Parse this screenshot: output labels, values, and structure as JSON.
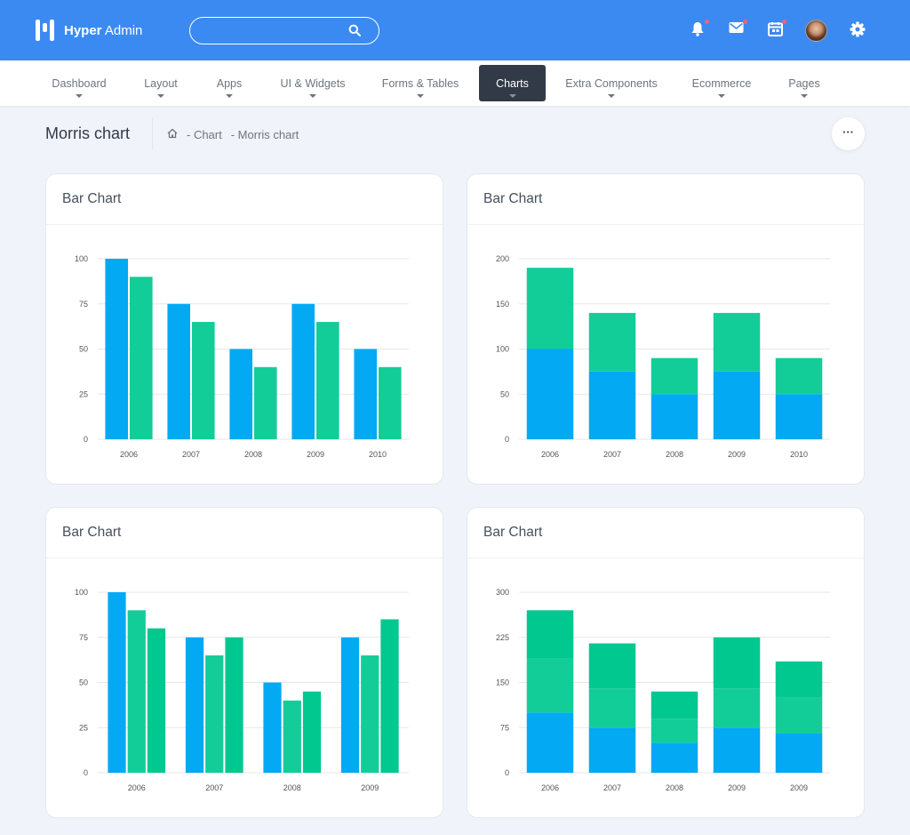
{
  "brand": {
    "name_bold": "Hyper",
    "name_rest": " Admin"
  },
  "search": {
    "placeholder": "",
    "value": ""
  },
  "topbar_icons": [
    "bell-icon",
    "mail-icon",
    "calendar-icon",
    "avatar",
    "gear-icon"
  ],
  "menu": [
    {
      "label": "Dashboard",
      "active": false
    },
    {
      "label": "Layout",
      "active": false
    },
    {
      "label": "Apps",
      "active": false
    },
    {
      "label": "UI & Widgets",
      "active": false
    },
    {
      "label": "Forms & Tables",
      "active": false
    },
    {
      "label": "Charts",
      "active": true
    },
    {
      "label": "Extra Components",
      "active": false
    },
    {
      "label": "Ecommerce",
      "active": false
    },
    {
      "label": "Pages",
      "active": false
    }
  ],
  "page": {
    "title": "Morris chart",
    "breadcrumb": [
      "- Chart",
      "- Morris chart"
    ],
    "more_label": "···"
  },
  "colors": {
    "blue": "#03a9f3",
    "green": "#13cd99",
    "green_mid": "#1ccf9b",
    "green_dark": "#00c88f",
    "topbar": "#3b8af2",
    "active_menu": "#313a46"
  },
  "cards": [
    {
      "title": "Bar Chart"
    },
    {
      "title": "Bar Chart"
    },
    {
      "title": "Bar Chart"
    },
    {
      "title": "Bar Chart"
    }
  ],
  "chart_data": [
    {
      "type": "bar",
      "stacked": false,
      "categories": [
        "2006",
        "2007",
        "2008",
        "2009",
        "2010"
      ],
      "series": [
        {
          "values": [
            100,
            75,
            50,
            75,
            50
          ],
          "color": "#03a9f3"
        },
        {
          "values": [
            90,
            65,
            40,
            65,
            40
          ],
          "color": "#13cd99"
        }
      ],
      "ylim": [
        0,
        100
      ],
      "yticks": [
        0,
        25,
        50,
        75,
        100
      ],
      "grid": true
    },
    {
      "type": "bar",
      "stacked": true,
      "categories": [
        "2006",
        "2007",
        "2008",
        "2009",
        "2010"
      ],
      "series": [
        {
          "values": [
            100,
            75,
            50,
            75,
            50
          ],
          "color": "#03a9f3"
        },
        {
          "values": [
            90,
            65,
            40,
            65,
            40
          ],
          "color": "#13cd99"
        }
      ],
      "ylim": [
        0,
        200
      ],
      "yticks": [
        0,
        50,
        100,
        150,
        200
      ],
      "grid": true
    },
    {
      "type": "bar",
      "stacked": false,
      "categories": [
        "2006",
        "2007",
        "2008",
        "2009"
      ],
      "series": [
        {
          "values": [
            100,
            75,
            50,
            75
          ],
          "color": "#03a9f3"
        },
        {
          "values": [
            90,
            65,
            40,
            65
          ],
          "color": "#13cd99"
        },
        {
          "values": [
            80,
            75,
            45,
            85
          ],
          "color": "#00c88f"
        }
      ],
      "ylim": [
        0,
        100
      ],
      "yticks": [
        0,
        25,
        50,
        75,
        100
      ],
      "grid": true
    },
    {
      "type": "bar",
      "stacked": true,
      "categories": [
        "2006",
        "2007",
        "2008",
        "2009",
        "2009"
      ],
      "series": [
        {
          "values": [
            100,
            75,
            50,
            75,
            65
          ],
          "color": "#03a9f3"
        },
        {
          "values": [
            90,
            65,
            40,
            65,
            60
          ],
          "color": "#13cd99"
        },
        {
          "values": [
            80,
            75,
            45,
            85,
            60
          ],
          "color": "#00c88f"
        }
      ],
      "ylim": [
        0,
        300
      ],
      "yticks": [
        0,
        75,
        150,
        225,
        300
      ],
      "grid": true
    }
  ]
}
